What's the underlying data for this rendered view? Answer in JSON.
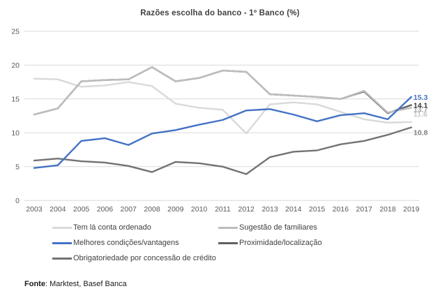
{
  "title": "Razões escolha do banco  - 1º Banco (%)",
  "footer": {
    "label": "Fonte",
    "text": ": Marktest, Basef Banca"
  },
  "colors": {
    "background": "#ffffff",
    "gridline": "#d9d9d9",
    "axis_text": "#595959",
    "title_text": "#404040",
    "legend_text": "#404040"
  },
  "chart_data": {
    "type": "line",
    "x": [
      2003,
      2004,
      2005,
      2006,
      2007,
      2008,
      2009,
      2010,
      2011,
      2012,
      2013,
      2014,
      2015,
      2016,
      2017,
      2018,
      2019
    ],
    "ylim": [
      0,
      25
    ],
    "yticks": [
      0,
      5,
      10,
      15,
      20,
      25
    ],
    "grid": true,
    "legend_position": "bottom",
    "title": "Razões escolha do banco  - 1º Banco (%)",
    "series": [
      {
        "id": "tem-la-conta-ordenado",
        "name": "Tem lá conta ordenado",
        "color": "#d9d9d9",
        "values": [
          18.0,
          17.9,
          16.8,
          17.0,
          17.5,
          16.9,
          14.3,
          13.7,
          13.4,
          9.9,
          14.2,
          14.5,
          14.2,
          13.1,
          12.0,
          11.5,
          11.6
        ],
        "end_label": "11.6",
        "end_label_color": "#c6c6c6",
        "end_label_dy": -12
      },
      {
        "id": "sugestao-de-familiares",
        "name": "Sugestão de familiares",
        "color": "#bdbdbd",
        "values": [
          12.7,
          13.6,
          17.6,
          17.8,
          17.9,
          19.7,
          17.6,
          18.1,
          19.2,
          19.0,
          15.7,
          15.5,
          15.3,
          15.0,
          16.2,
          13.0,
          13.7
        ],
        "end_label": "13.7",
        "end_label_color": "#a6a6a6",
        "end_label_dy": 2
      },
      {
        "id": "melhores-condicoes-vantagens",
        "name": "Melhores condições/vantagens",
        "color": "#4472c4",
        "values": [
          4.8,
          5.2,
          8.8,
          9.2,
          8.2,
          9.9,
          10.4,
          11.2,
          11.9,
          13.3,
          13.5,
          12.7,
          11.7,
          12.6,
          12.9,
          12.0,
          15.3
        ],
        "end_label": "15.3",
        "end_label_color": "#4472c4",
        "end_label_dy": 0
      },
      {
        "id": "proximidade-localizacao",
        "name": "Proximidade/localização",
        "color": "#606060",
        "values": [
          12.7,
          13.6,
          17.6,
          17.8,
          17.9,
          19.7,
          17.6,
          18.1,
          19.2,
          19.0,
          15.7,
          15.5,
          15.3,
          15.0,
          16.1,
          12.9,
          14.1
        ],
        "end_label": "14.1",
        "end_label_color": "#3a3a3a",
        "end_label_dy": 0
      },
      {
        "id": "obrigatoriedade-concessao-credito",
        "name": "Obrigatoriedade por concessão de crédito",
        "color": "#737373",
        "values": [
          5.9,
          6.2,
          5.8,
          5.6,
          5.1,
          4.2,
          5.7,
          5.5,
          5.0,
          3.9,
          6.4,
          7.2,
          7.4,
          8.3,
          8.8,
          9.7,
          10.8
        ],
        "end_label": "10.8",
        "end_label_color": "#7f7f7f",
        "end_label_dy": 7
      }
    ],
    "plot_order": [
      0,
      3,
      1,
      4,
      2
    ]
  }
}
